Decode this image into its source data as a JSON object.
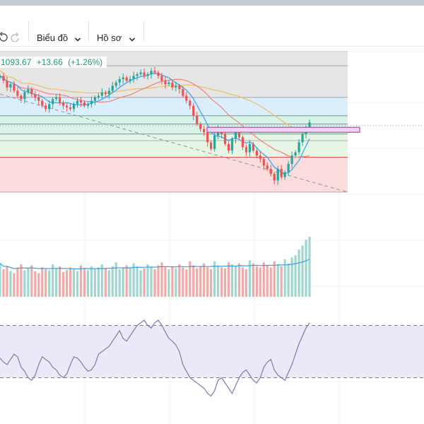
{
  "toolbar": {
    "undo_icon": "undo-icon",
    "redo_icon": "redo-icon",
    "chart_menu_label": "Biểu đồ",
    "profile_menu_label": "Hồ sơ",
    "chevron_icon": "chevron-down-icon"
  },
  "price_header": {
    "last": "1093.67",
    "change": "+13.66",
    "change_pct": "(+1.26%)"
  },
  "colors": {
    "up": "#26a69a",
    "down": "#ef5350",
    "ma_fast": "#42a5f5",
    "ma_mid": "#ef8a80",
    "ma_slow": "#f0c070",
    "rsi_line": "#8a7fb6",
    "rsi_band": "#ece8f7",
    "zone_gray": "#e6e6e6",
    "zone_blue": "#dbeefc",
    "zone_teal": "#d9f2ea",
    "zone_green": "#e7f5e4",
    "zone_red": "#fbdcdc",
    "box_fill": "#ead7f0",
    "box_stroke": "#b04aa8"
  },
  "chart_data": [
    {
      "type": "candlestick",
      "ylim": [
        996,
        1107
      ],
      "fib_levels": [
        1098,
        1079,
        1068,
        1063,
        1057,
        1053,
        1043,
        1022
      ],
      "zones": [
        {
          "from": 1107,
          "to": 1079,
          "color": "zone_gray"
        },
        {
          "from": 1079,
          "to": 1068,
          "color": "zone_blue"
        },
        {
          "from": 1068,
          "to": 1057,
          "color": "zone_teal"
        },
        {
          "from": 1057,
          "to": 1043,
          "color": "zone_green"
        },
        {
          "from": 1043,
          "to": 1022,
          "color": "zone_red"
        }
      ],
      "resistance_box": {
        "low": 1058,
        "high": 1061
      },
      "dotted_level": 1062,
      "trendline": {
        "start": 1081,
        "end": 1022
      },
      "close": [
        1092,
        1089,
        1085,
        1087,
        1083,
        1080,
        1078,
        1082,
        1084,
        1081,
        1079,
        1077,
        1074,
        1072,
        1075,
        1078,
        1079,
        1076,
        1074,
        1073,
        1072,
        1075,
        1077,
        1076,
        1074,
        1075,
        1077,
        1079,
        1080,
        1082,
        1081,
        1083,
        1086,
        1088,
        1090,
        1091,
        1089,
        1090,
        1092,
        1093,
        1094,
        1092,
        1093,
        1095,
        1094,
        1092,
        1089,
        1087,
        1088,
        1085,
        1086,
        1084,
        1080,
        1077,
        1074,
        1068,
        1063,
        1060,
        1058,
        1052,
        1048,
        1056,
        1060,
        1057,
        1051,
        1047,
        1054,
        1058,
        1055,
        1049,
        1046,
        1051,
        1047,
        1044,
        1042,
        1038,
        1036,
        1033,
        1029,
        1036,
        1031,
        1034,
        1039,
        1044,
        1046,
        1052,
        1057,
        1061,
        1064
      ]
    },
    {
      "type": "bar",
      "volume": [
        34,
        28,
        31,
        26,
        24,
        30,
        33,
        27,
        29,
        32,
        26,
        24,
        30,
        28,
        27,
        33,
        29,
        31,
        25,
        27,
        30,
        28,
        26,
        32,
        29,
        27,
        31,
        28,
        30,
        33,
        29,
        27,
        31,
        35,
        28,
        30,
        32,
        29,
        34,
        31,
        27,
        29,
        33,
        30,
        28,
        32,
        35,
        30,
        28,
        31,
        29,
        33,
        30,
        28,
        36,
        32,
        29,
        31,
        34,
        30,
        28,
        36,
        32,
        30,
        29,
        35,
        33,
        31,
        34,
        30,
        28,
        37,
        34,
        31,
        30,
        35,
        32,
        30,
        36,
        33,
        31,
        38,
        34,
        40,
        42,
        48,
        52,
        58,
        61
      ]
    },
    {
      "type": "line",
      "ylim": [
        0,
        100
      ],
      "bands": [
        70,
        30
      ],
      "rsi": [
        45,
        42,
        40,
        44,
        48,
        46,
        38,
        35,
        30,
        28,
        32,
        40,
        46,
        44,
        42,
        38,
        36,
        32,
        30,
        33,
        40,
        46,
        45,
        42,
        38,
        35,
        36,
        40,
        48,
        50,
        52,
        54,
        58,
        62,
        66,
        60,
        58,
        62,
        66,
        70,
        72,
        74,
        70,
        68,
        72,
        74,
        70,
        65,
        60,
        58,
        55,
        50,
        40,
        35,
        30,
        28,
        26,
        24,
        22,
        18,
        16,
        20,
        28,
        30,
        26,
        22,
        18,
        24,
        30,
        34,
        36,
        32,
        28,
        26,
        30,
        38,
        42,
        44,
        36,
        32,
        30,
        28,
        34,
        40,
        48,
        56,
        62,
        68,
        72
      ]
    }
  ]
}
